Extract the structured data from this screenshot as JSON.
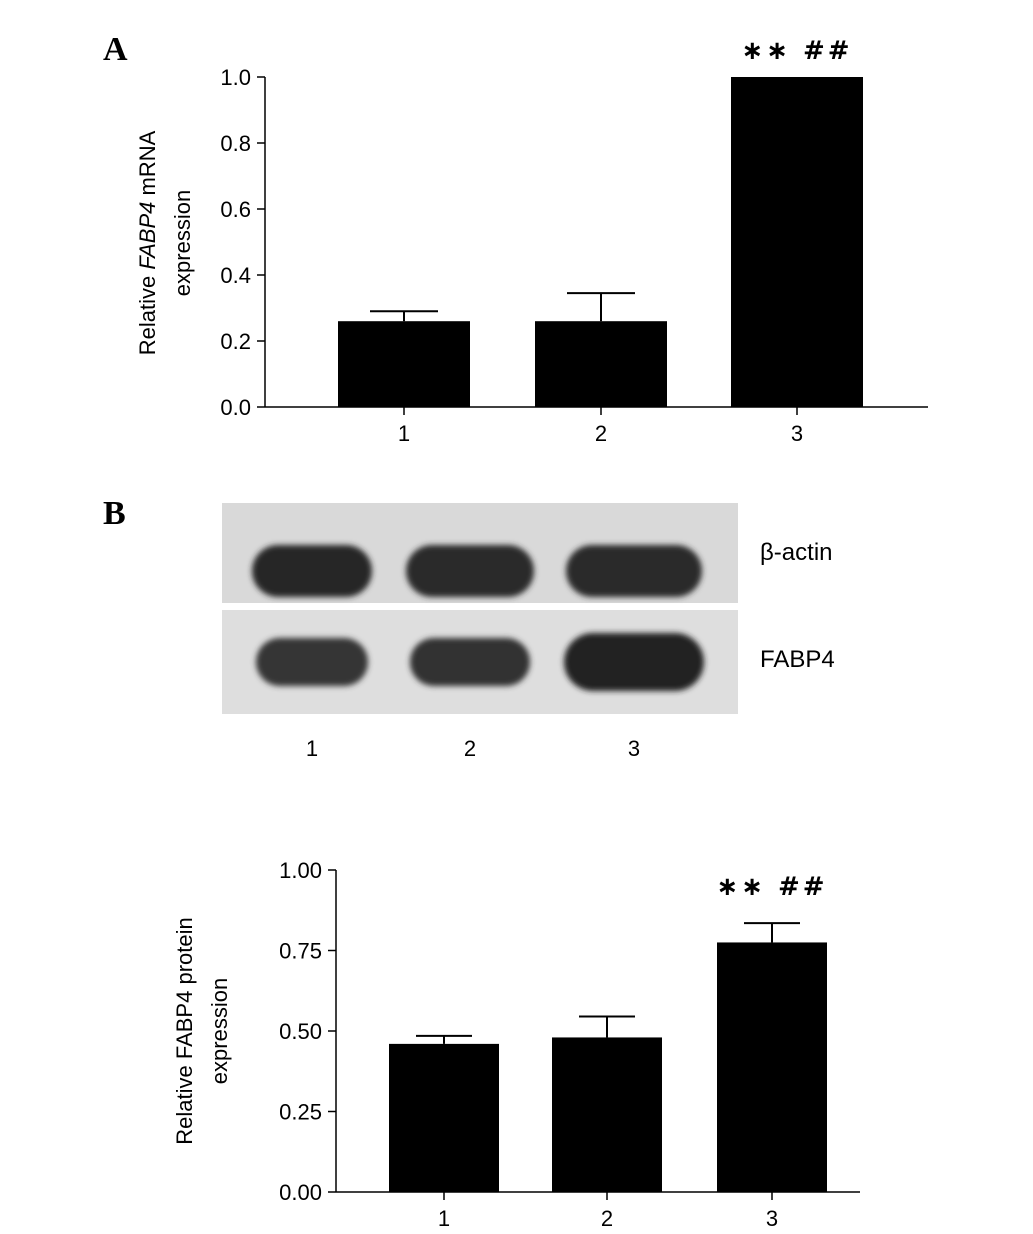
{
  "panels": {
    "a_letter": "A",
    "b_letter": "B"
  },
  "chart_data": [
    {
      "type": "bar",
      "categories": [
        "1",
        "2",
        "3"
      ],
      "values": [
        0.26,
        0.26,
        1.0
      ],
      "errors": [
        0.03,
        0.085,
        0.0
      ],
      "ylim": [
        0.0,
        1.0
      ],
      "yticks": [
        "0.0",
        "0.2",
        "0.4",
        "0.6",
        "0.8",
        "1.0"
      ],
      "ylabel_parts": [
        "Relative ",
        "FABP4",
        " mRNA"
      ],
      "ylabel_line2": "expression",
      "significance": [
        "",
        "",
        "∗∗  ##"
      ],
      "bar_color": "#000000"
    },
    {
      "type": "bar",
      "categories": [
        "1",
        "2",
        "3"
      ],
      "values": [
        0.46,
        0.48,
        0.775
      ],
      "errors": [
        0.025,
        0.065,
        0.06
      ],
      "ylim": [
        0.0,
        1.0
      ],
      "yticks": [
        "0.00",
        "0.25",
        "0.50",
        "0.75",
        "1.00"
      ],
      "ylabel_line1": "Relative FABP4 protein",
      "ylabel_line2": "expression",
      "significance": [
        "",
        "",
        "∗∗  ##"
      ],
      "bar_color": "#000000"
    }
  ],
  "blot": {
    "rows": [
      {
        "label": "β-actin",
        "intensity": [
          0.92,
          0.9,
          0.88
        ]
      },
      {
        "label": "FABP4",
        "intensity": [
          0.82,
          0.85,
          0.95
        ]
      }
    ],
    "lanes": [
      "1",
      "2",
      "3"
    ]
  }
}
